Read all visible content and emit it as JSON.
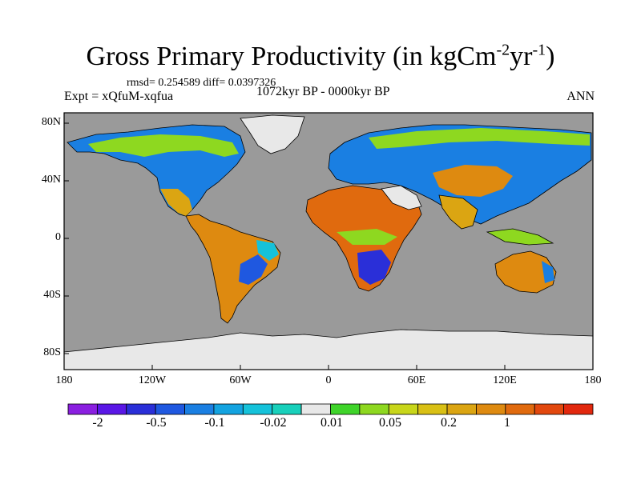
{
  "title": {
    "main": "Gross Primary Productivity (in kgCm",
    "sup1": "-2",
    "mid": "yr",
    "sup2": "-1",
    "end": ")"
  },
  "stats": "rmsd= 0.254589 diff= 0.0397326",
  "expt": "Expt = xQfuM-xqfua",
  "period": "1072kyr BP - 0000kyr BP",
  "season": "ANN",
  "axes": {
    "lat_labels": [
      "80N",
      "40N",
      "0",
      "40S",
      "80S"
    ],
    "lon_labels": [
      "180",
      "120W",
      "60W",
      "0",
      "60E",
      "120E",
      "180"
    ]
  },
  "colorbar": {
    "colors": [
      "#8a1fe0",
      "#5a17e6",
      "#2a2fd8",
      "#1f58e0",
      "#1a7fe2",
      "#13a3e0",
      "#15c2da",
      "#18d0bb",
      "#e8e8e8",
      "#3fd42a",
      "#8ed820",
      "#c8d61a",
      "#d9c015",
      "#dba512",
      "#de8a10",
      "#e06a0e",
      "#e2480e",
      "#e2280e"
    ],
    "labels": [
      "-2",
      "-0.5",
      "-0.1",
      "-0.02",
      "0.01",
      "0.05",
      "0.2",
      "1"
    ]
  },
  "colors": {
    "ocean": "#9a9a9a",
    "ice": "#e8e8e8",
    "coast": "#000000"
  }
}
